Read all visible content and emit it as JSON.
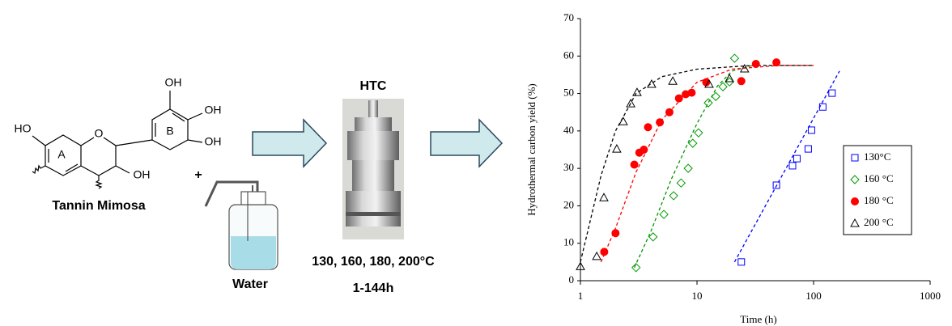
{
  "scheme": {
    "ho_left": "HO",
    "oh_top": "OH",
    "oh_right_upper": "OH",
    "oh_right_lower": "OH",
    "oh_c3": "OH",
    "ring_o": "O",
    "ring_a": "A",
    "ring_b": "B",
    "plus": "+",
    "compound": "Tannin Mimosa",
    "water": "Water",
    "process": "HTC",
    "temperatures": "130, 160, 180, 200°C",
    "duration": "1-144h"
  },
  "chart_data": {
    "type": "scatter",
    "x_label": "Time (h)",
    "y_label": "Hydrothermal carbon yield  (%)",
    "log_x": true,
    "xlim": [
      1,
      1000
    ],
    "xticks": [
      1,
      10,
      100,
      1000
    ],
    "ylim": [
      0,
      70
    ],
    "yticks": [
      0,
      10,
      20,
      30,
      40,
      50,
      60,
      70
    ],
    "legend": "right",
    "series": [
      {
        "name": "130°C",
        "color": "#0000ff",
        "marker": "square",
        "filled": false,
        "x": [
          24,
          48,
          66,
          72,
          90,
          96,
          120,
          144
        ],
        "values": [
          5,
          25.5,
          30.7,
          32.6,
          35.2,
          40.2,
          46.4,
          50.1
        ],
        "fit_x": [
          21,
          167
        ],
        "fit_values": [
          5,
          56
        ]
      },
      {
        "name": "160 °C",
        "color": "#009900",
        "marker": "diamond",
        "filled": false,
        "x": [
          3,
          4.2,
          5.2,
          6.3,
          7.3,
          8.4,
          9.2,
          10.3,
          12.5,
          14.5,
          16.7,
          19,
          21
        ],
        "values": [
          3.5,
          11.7,
          17.7,
          22.7,
          26.1,
          30,
          36.7,
          39.5,
          47.5,
          49.2,
          51.8,
          53.1,
          59.4
        ],
        "fit_x": [
          2.9,
          4,
          6,
          10,
          15,
          20,
          30
        ],
        "fit_values": [
          3.5,
          13,
          27,
          42,
          52,
          56,
          57.5
        ]
      },
      {
        "name": "180 °C",
        "color": "#ff0000",
        "marker": "circle",
        "filled": true,
        "x": [
          1.6,
          2,
          2.9,
          3.2,
          3.5,
          3.8,
          4.8,
          5.8,
          7,
          8,
          9,
          12,
          24,
          32,
          48
        ],
        "values": [
          7.7,
          12.7,
          31,
          34.2,
          35,
          41,
          42.3,
          45,
          48.7,
          49.8,
          50.2,
          53,
          53.3,
          57.9,
          58.3
        ],
        "fit_x": [
          1.5,
          2,
          3,
          5,
          10,
          20,
          50,
          100
        ],
        "fit_values": [
          5,
          14,
          29,
          43,
          53,
          56.5,
          57.5,
          57.5
        ]
      },
      {
        "name": "200 °C",
        "color": "#000000",
        "marker": "triangle",
        "filled": false,
        "x": [
          1,
          1.38,
          1.59,
          2.05,
          2.33,
          2.7,
          3.06,
          4.08,
          6.2,
          12.7,
          19,
          25.6
        ],
        "values": [
          3.8,
          6.5,
          22.2,
          35.2,
          42.5,
          47.3,
          50.3,
          52.5,
          53.3,
          52.5,
          54,
          56.6
        ],
        "fit_x": [
          1,
          1.5,
          2,
          3,
          5,
          10,
          30,
          100
        ],
        "fit_values": [
          5,
          28,
          40,
          50,
          54.5,
          56.5,
          57.5,
          57.5
        ]
      }
    ]
  }
}
